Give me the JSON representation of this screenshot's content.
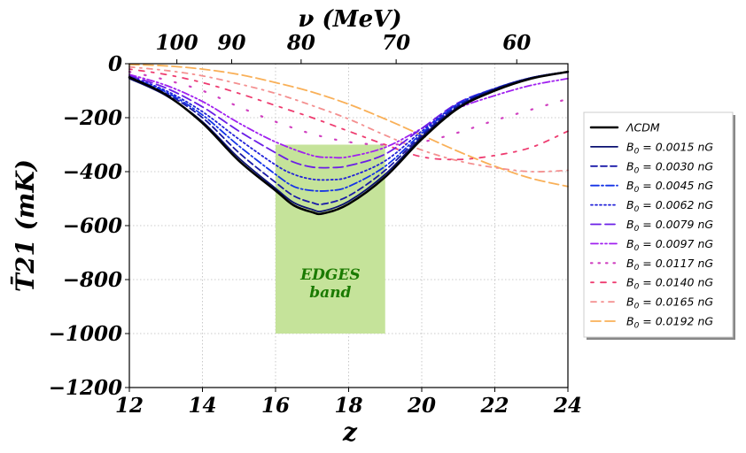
{
  "chart_data": {
    "type": "line",
    "xlabel": "z",
    "ylabel": "T̄21  (mK)",
    "top_axis_label": "ν (MeV)",
    "xlim": [
      12,
      24
    ],
    "ylim": [
      -1200,
      0
    ],
    "x_ticks": [
      12,
      14,
      16,
      18,
      20,
      22,
      24
    ],
    "y_ticks": [
      0,
      -200,
      -400,
      -600,
      -800,
      -1000,
      -1200
    ],
    "y_tick_labels": [
      "0",
      "−200",
      "−400",
      "−600",
      "−800",
      "−1000",
      "−1200"
    ],
    "top_ticks": [
      {
        "label": "100",
        "z": 13.3
      },
      {
        "label": "90",
        "z": 14.8
      },
      {
        "label": "80",
        "z": 16.7
      },
      {
        "label": "70",
        "z": 19.3
      },
      {
        "label": "60",
        "z": 22.6
      }
    ],
    "grid": true,
    "legend_position": "right-outside",
    "band": {
      "label_line1": "EDGES",
      "label_line2": "band",
      "x_range": [
        16,
        19
      ],
      "y_range": [
        -1000,
        -300
      ],
      "color": "#c5e39a"
    },
    "series": [
      {
        "name": "ΛCDM",
        "color": "#000000",
        "style": "solid",
        "width": 2.5,
        "pts": [
          [
            12,
            -50
          ],
          [
            13,
            -115
          ],
          [
            14,
            -220
          ],
          [
            15,
            -360
          ],
          [
            16,
            -470
          ],
          [
            16.5,
            -525
          ],
          [
            17,
            -550
          ],
          [
            17.3,
            -555
          ],
          [
            18,
            -520
          ],
          [
            19,
            -420
          ],
          [
            20,
            -280
          ],
          [
            21,
            -165
          ],
          [
            22,
            -100
          ],
          [
            23,
            -55
          ],
          [
            24,
            -30
          ]
        ]
      },
      {
        "name": "B0 = 0.0015 nG",
        "color": "#0a1070",
        "style": "solid",
        "width": 1.8,
        "pts": [
          [
            12,
            -55
          ],
          [
            13,
            -118
          ],
          [
            14,
            -215
          ],
          [
            15,
            -350
          ],
          [
            16,
            -462
          ],
          [
            16.5,
            -515
          ],
          [
            17,
            -540
          ],
          [
            17.3,
            -546
          ],
          [
            18,
            -510
          ],
          [
            19,
            -410
          ],
          [
            20,
            -272
          ],
          [
            21,
            -160
          ],
          [
            22,
            -95
          ],
          [
            23,
            -52
          ],
          [
            24,
            -30
          ]
        ]
      },
      {
        "name": "B0 = 0.0030 nG",
        "color": "#1a1aa8",
        "style": "dashed",
        "width": 1.8,
        "pts": [
          [
            12,
            -52
          ],
          [
            13,
            -110
          ],
          [
            14,
            -200
          ],
          [
            15,
            -330
          ],
          [
            16,
            -440
          ],
          [
            16.5,
            -490
          ],
          [
            17,
            -515
          ],
          [
            17.3,
            -520
          ],
          [
            18,
            -490
          ],
          [
            19,
            -395
          ],
          [
            20,
            -265
          ],
          [
            21,
            -155
          ],
          [
            22,
            -93
          ],
          [
            23,
            -52
          ],
          [
            24,
            -30
          ]
        ]
      },
      {
        "name": "B0 = 0.0045 nG",
        "color": "#1433e6",
        "style": "dashdot",
        "width": 1.8,
        "pts": [
          [
            12,
            -50
          ],
          [
            13,
            -105
          ],
          [
            14,
            -190
          ],
          [
            15,
            -305
          ],
          [
            16,
            -410
          ],
          [
            16.5,
            -455
          ],
          [
            17,
            -470
          ],
          [
            17.5,
            -470
          ],
          [
            18,
            -455
          ],
          [
            19,
            -380
          ],
          [
            20,
            -258
          ],
          [
            21,
            -150
          ],
          [
            22,
            -92
          ],
          [
            23,
            -52
          ],
          [
            24,
            -30
          ]
        ]
      },
      {
        "name": "B0 = 0.0062 nG",
        "color": "#2020d8",
        "style": "dotted",
        "width": 1.8,
        "pts": [
          [
            12,
            -48
          ],
          [
            13,
            -100
          ],
          [
            14,
            -178
          ],
          [
            15,
            -280
          ],
          [
            16,
            -375
          ],
          [
            16.5,
            -410
          ],
          [
            17,
            -428
          ],
          [
            17.5,
            -430
          ],
          [
            18,
            -420
          ],
          [
            19,
            -360
          ],
          [
            20,
            -250
          ],
          [
            21,
            -148
          ],
          [
            22,
            -92
          ],
          [
            23,
            -52
          ],
          [
            24,
            -30
          ]
        ]
      },
      {
        "name": "B0 = 0.0079 nG",
        "color": "#6a1ee6",
        "style": "longdash",
        "width": 1.8,
        "pts": [
          [
            12,
            -45
          ],
          [
            13,
            -90
          ],
          [
            14,
            -160
          ],
          [
            15,
            -250
          ],
          [
            16,
            -330
          ],
          [
            16.5,
            -365
          ],
          [
            17,
            -383
          ],
          [
            17.5,
            -385
          ],
          [
            18,
            -378
          ],
          [
            19,
            -335
          ],
          [
            20,
            -240
          ],
          [
            21,
            -145
          ],
          [
            22,
            -92
          ],
          [
            23,
            -53
          ],
          [
            24,
            -32
          ]
        ]
      },
      {
        "name": "B0 = 0.0097 nG",
        "color": "#a020f0",
        "style": "dashdotdot",
        "width": 1.8,
        "pts": [
          [
            12,
            -40
          ],
          [
            13,
            -80
          ],
          [
            14,
            -140
          ],
          [
            15,
            -220
          ],
          [
            16,
            -290
          ],
          [
            17,
            -340
          ],
          [
            17.5,
            -347
          ],
          [
            18,
            -345
          ],
          [
            19,
            -310
          ],
          [
            20,
            -240
          ],
          [
            21,
            -165
          ],
          [
            22,
            -118
          ],
          [
            23,
            -80
          ],
          [
            24,
            -55
          ]
        ]
      },
      {
        "name": "B0 = 0.0117 nG",
        "color": "#d040c0",
        "style": "sparse-dot",
        "width": 2.2,
        "pts": [
          [
            12,
            -30
          ],
          [
            13,
            -60
          ],
          [
            14,
            -100
          ],
          [
            15,
            -160
          ],
          [
            16,
            -215
          ],
          [
            17,
            -260
          ],
          [
            18,
            -290
          ],
          [
            19,
            -300
          ],
          [
            20,
            -290
          ],
          [
            21,
            -255
          ],
          [
            22,
            -210
          ],
          [
            23,
            -170
          ],
          [
            24,
            -130
          ]
        ]
      },
      {
        "name": "B0 = 0.0140 nG",
        "color": "#ee3c70",
        "style": "dot-dash-sparse",
        "width": 1.8,
        "pts": [
          [
            12,
            -20
          ],
          [
            13,
            -40
          ],
          [
            14,
            -70
          ],
          [
            15,
            -110
          ],
          [
            16,
            -155
          ],
          [
            17,
            -200
          ],
          [
            18,
            -250
          ],
          [
            19,
            -300
          ],
          [
            20,
            -345
          ],
          [
            21,
            -355
          ],
          [
            22,
            -340
          ],
          [
            23,
            -310
          ],
          [
            24,
            -250
          ]
        ]
      },
      {
        "name": "B0 = 0.0165 nG",
        "color": "#f49090",
        "style": "dashdot-light",
        "width": 1.8,
        "pts": [
          [
            12,
            -12
          ],
          [
            13,
            -25
          ],
          [
            14,
            -45
          ],
          [
            15,
            -75
          ],
          [
            16,
            -110
          ],
          [
            17,
            -155
          ],
          [
            18,
            -205
          ],
          [
            19,
            -265
          ],
          [
            20,
            -320
          ],
          [
            21,
            -360
          ],
          [
            22,
            -385
          ],
          [
            23,
            -400
          ],
          [
            24,
            -395
          ]
        ]
      },
      {
        "name": "B0 = 0.0192 nG",
        "color": "#f9b058",
        "style": "longdash",
        "width": 1.8,
        "pts": [
          [
            12,
            -3
          ],
          [
            13,
            -8
          ],
          [
            14,
            -20
          ],
          [
            15,
            -40
          ],
          [
            16,
            -70
          ],
          [
            17,
            -105
          ],
          [
            18,
            -150
          ],
          [
            19,
            -205
          ],
          [
            20,
            -265
          ],
          [
            21,
            -325
          ],
          [
            22,
            -380
          ],
          [
            23,
            -425
          ],
          [
            24,
            -455
          ]
        ]
      }
    ],
    "legend_labels": [
      {
        "name": "ΛCDM",
        "label": "ΛCDM"
      },
      {
        "name": "B0 = 0.0015 nG",
        "label": "= 0.0015 nG"
      },
      {
        "name": "B0 = 0.0030 nG",
        "label": "= 0.0030 nG"
      },
      {
        "name": "B0 = 0.0045 nG",
        "label": "= 0.0045 nG"
      },
      {
        "name": "B0 = 0.0062 nG",
        "label": "= 0.0062 nG"
      },
      {
        "name": "B0 = 0.0079 nG",
        "label": "= 0.0079 nG"
      },
      {
        "name": "B0 = 0.0097 nG",
        "label": "= 0.0097 nG"
      },
      {
        "name": "B0 = 0.0117 nG",
        "label": "= 0.0117 nG"
      },
      {
        "name": "B0 = 0.0140 nG",
        "label": "= 0.0140 nG"
      },
      {
        "name": "B0 = 0.0165 nG",
        "label": "= 0.0165 nG"
      },
      {
        "name": "B0 = 0.0192 nG",
        "label": "= 0.0192 nG"
      }
    ]
  }
}
